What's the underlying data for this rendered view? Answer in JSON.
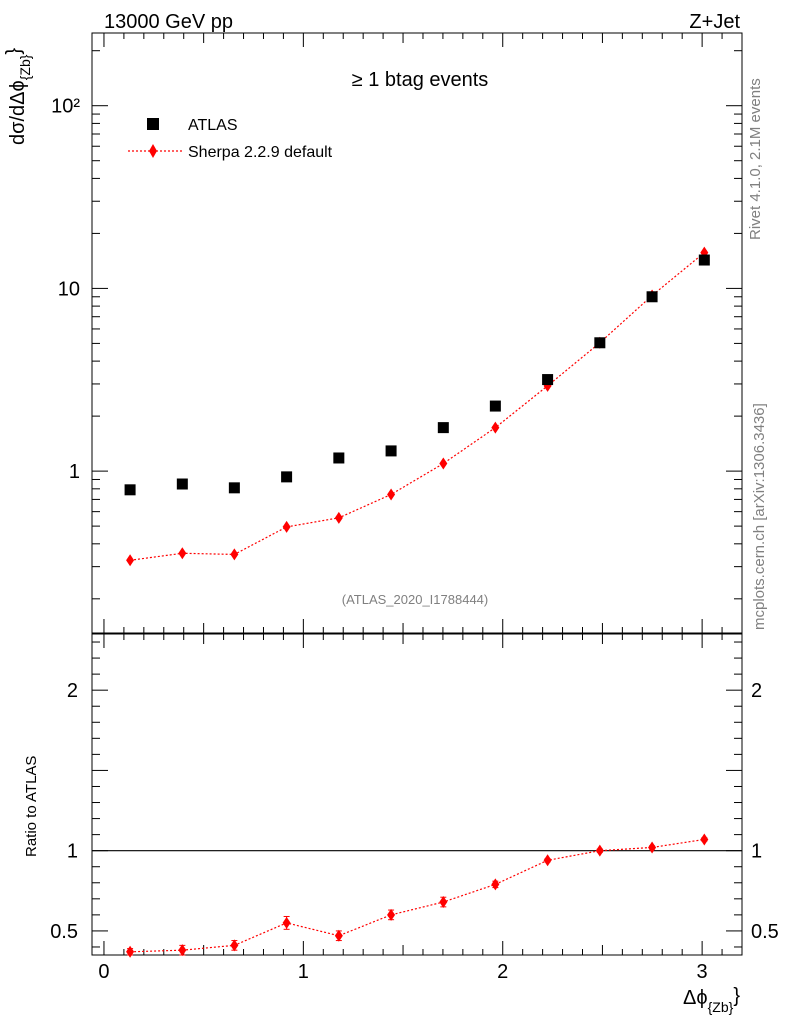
{
  "header": {
    "energy_label": "13000 GeV pp",
    "process_label": "Z+Jet",
    "selection_label": "≥ 1 btag events",
    "analysis_id": "(ATLAS_2020_I1788444)",
    "rivet_label": "Rivet 4.1.0,  2.1M events",
    "source_label": "mcplots.cern.ch [arXiv:1306.3436]"
  },
  "colors": {
    "data": "#000000",
    "mc": "#ff0000",
    "grey_text": "#808080"
  },
  "chart_data": [
    {
      "type": "scatter",
      "panel": "main",
      "ylabel": "dσ/dΔφ{Zb}",
      "yscale": "log",
      "ylim": [
        0.13,
        250
      ],
      "yticks": [
        {
          "value": 1,
          "label": "1"
        },
        {
          "value": 10,
          "label": "10"
        },
        {
          "value": 100,
          "label": "10²"
        }
      ],
      "x": [
        0.131,
        0.393,
        0.654,
        0.916,
        1.178,
        1.44,
        1.702,
        1.963,
        2.225,
        2.487,
        2.749,
        3.011
      ],
      "series": [
        {
          "name": "ATLAS",
          "marker": "square",
          "values": [
            0.79,
            0.85,
            0.81,
            0.93,
            1.18,
            1.29,
            1.73,
            2.27,
            3.17,
            5.04,
            9.0,
            14.3
          ]
        },
        {
          "name": "Sherpa 2.2.9 default",
          "marker": "diamond",
          "line": "dotted",
          "values": [
            0.325,
            0.355,
            0.35,
            0.495,
            0.555,
            0.745,
            1.1,
            1.73,
            2.93,
            5.04,
            9.14,
            15.7
          ]
        }
      ],
      "legend": "top-left"
    },
    {
      "type": "line",
      "panel": "ratio",
      "ylabel": "Ratio to ATLAS",
      "ylim": [
        0.35,
        2.35
      ],
      "yticks": [
        {
          "value": 0.5,
          "label": "0.5"
        },
        {
          "value": 1,
          "label": "1"
        },
        {
          "value": 2,
          "label": "2"
        }
      ],
      "xlabel": "Δφ{Zb}",
      "xlim": [
        -0.06,
        3.2
      ],
      "xticks": [
        {
          "value": 0,
          "label": "0"
        },
        {
          "value": 1,
          "label": "1"
        },
        {
          "value": 2,
          "label": "2"
        },
        {
          "value": 3,
          "label": "3"
        }
      ],
      "x": [
        0.131,
        0.393,
        0.654,
        0.916,
        1.178,
        1.44,
        1.702,
        1.963,
        2.225,
        2.487,
        2.749,
        3.011
      ],
      "values": [
        0.37,
        0.38,
        0.41,
        0.55,
        0.47,
        0.6,
        0.68,
        0.79,
        0.94,
        1.0,
        1.02,
        1.07
      ],
      "errors": [
        0.02,
        0.03,
        0.03,
        0.04,
        0.03,
        0.03,
        0.03,
        0.02,
        0.01,
        0.01,
        0.01,
        0.01
      ],
      "reference": 1.0
    }
  ]
}
